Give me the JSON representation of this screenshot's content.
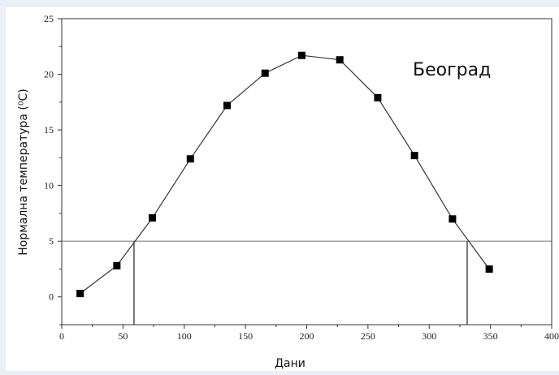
{
  "chart_data": {
    "type": "line",
    "title": "",
    "annotation": "Београд",
    "xlabel": "Дани",
    "ylabel": "Нормална температура (⁰C)",
    "xlim": [
      0,
      400
    ],
    "ylim": [
      -2.5,
      25
    ],
    "xticks": [
      0,
      50,
      100,
      150,
      200,
      250,
      300,
      350,
      400
    ],
    "yticks": [
      0,
      5,
      10,
      15,
      20,
      25
    ],
    "grid": false,
    "series": [
      {
        "x": [
          15,
          45,
          74,
          105,
          135,
          166,
          196,
          227,
          258,
          288,
          319,
          349
        ],
        "y": [
          0.3,
          2.8,
          7.1,
          12.4,
          17.2,
          20.1,
          21.7,
          21.3,
          17.9,
          12.7,
          7.0,
          2.5
        ],
        "marker": "square",
        "color": "#000000"
      }
    ],
    "reference_line": {
      "y": 5,
      "color": "#9a9a9a"
    },
    "crossing_x": [
      59,
      331
    ]
  }
}
